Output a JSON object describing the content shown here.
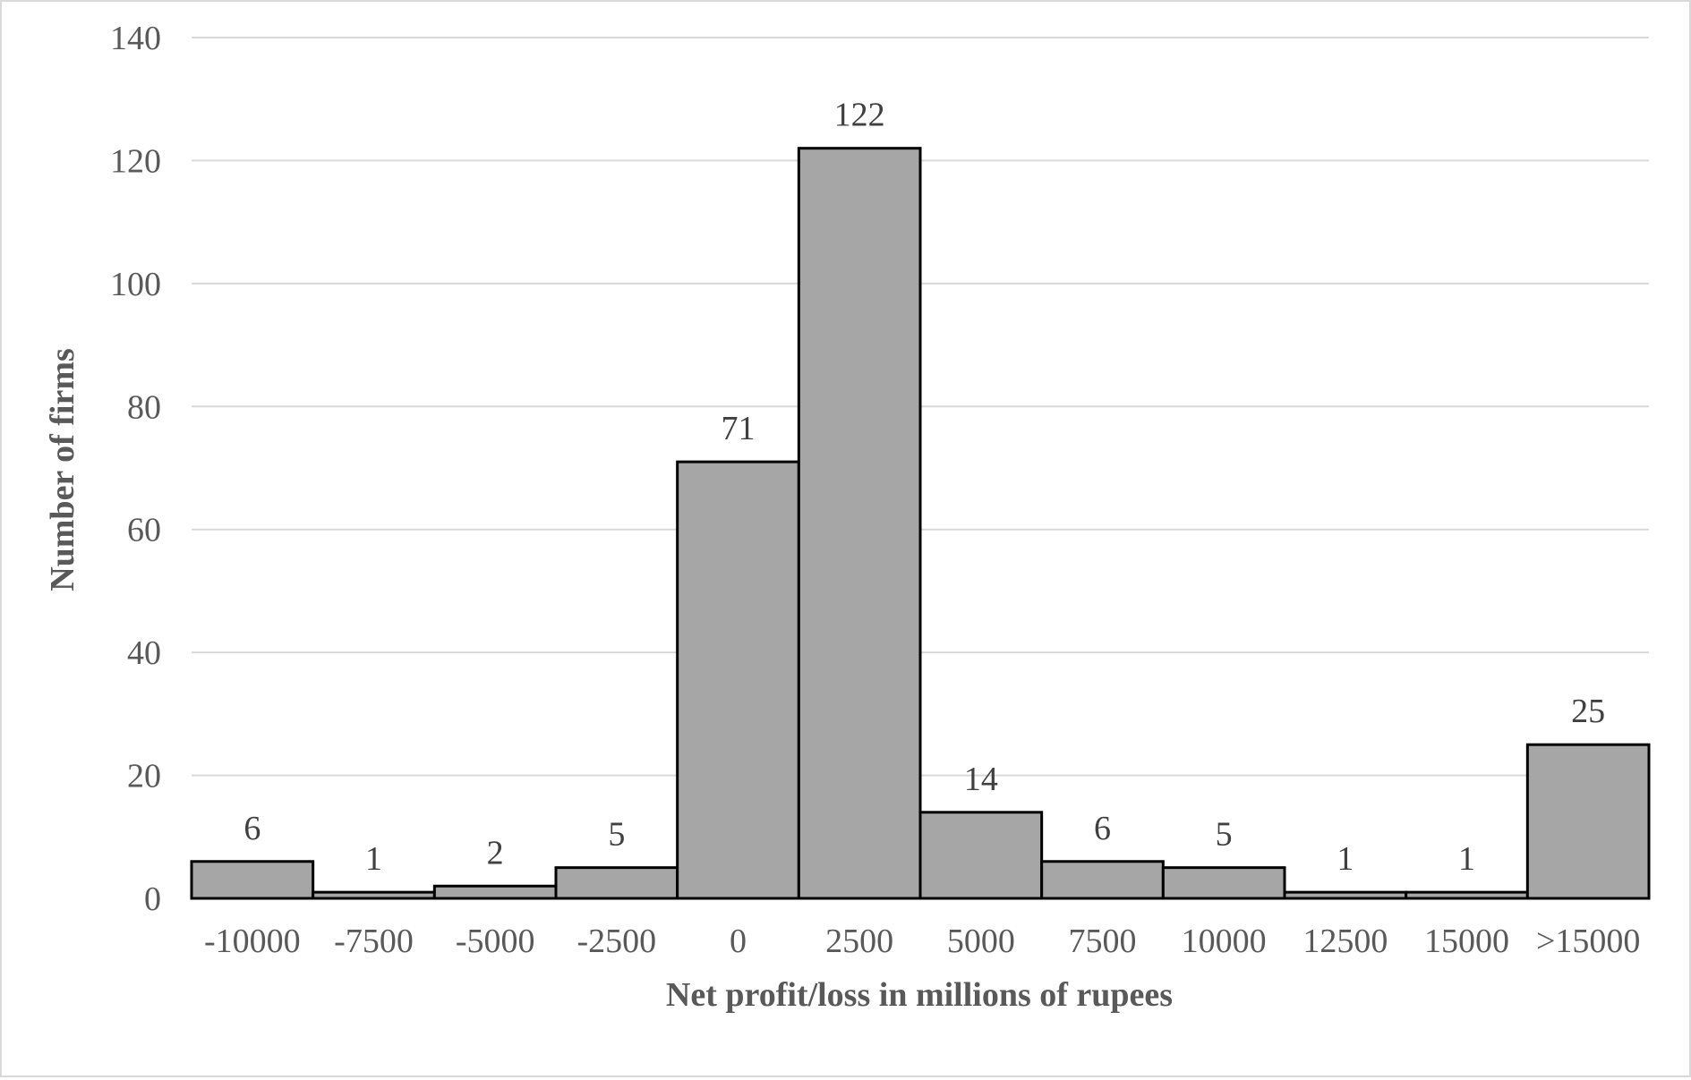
{
  "chart_data": {
    "type": "bar",
    "title": "",
    "xlabel": "Net profit/loss in millions of rupees",
    "ylabel": "Number of firms",
    "categories": [
      "-10000",
      "-7500",
      "-5000",
      "-2500",
      "0",
      "2500",
      "5000",
      "7500",
      "10000",
      "12500",
      "15000",
      ">15000"
    ],
    "values": [
      6,
      1,
      2,
      5,
      71,
      122,
      14,
      6,
      5,
      1,
      1,
      25
    ],
    "data_labels": [
      "6",
      "1",
      "2",
      "5",
      "71",
      "122",
      "14",
      "6",
      "5",
      "1",
      "1",
      "25"
    ],
    "ylim": [
      0,
      140
    ],
    "yticks": [
      "0",
      "20",
      "40",
      "60",
      "80",
      "100",
      "120",
      "140"
    ],
    "grid": true,
    "legend": "none",
    "colors": {
      "bar_fill": "#a6a6a6",
      "bar_stroke": "#000000",
      "gridline": "#d9d9d9",
      "axis_text": "#595959",
      "label_text": "#404040"
    }
  }
}
